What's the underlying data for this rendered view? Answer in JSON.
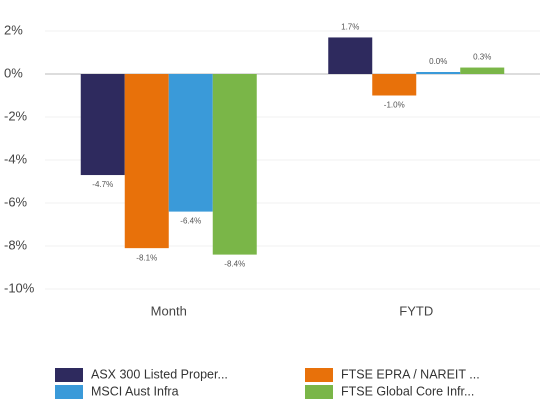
{
  "chart_data": {
    "type": "bar",
    "categories": [
      "Month",
      "FYTD"
    ],
    "series": [
      {
        "name": "ASX 300 Listed Proper...",
        "color": "#2e2a5e",
        "values": [
          -4.7,
          1.7
        ],
        "value_labels": [
          "-4.7%",
          "1.7%"
        ]
      },
      {
        "name": "FTSE EPRA / NAREIT ...",
        "color": "#e8710a",
        "values": [
          -8.1,
          -1.0
        ],
        "value_labels": [
          "-8.1%",
          "-1.0%"
        ]
      },
      {
        "name": "MSCI Aust Infra",
        "color": "#3a9ad9",
        "values": [
          -6.4,
          0.0
        ],
        "value_labels": [
          "-6.4%",
          "0.0%"
        ]
      },
      {
        "name": "FTSE Global Core Infr...",
        "color": "#7ab648",
        "values": [
          -8.4,
          0.3
        ],
        "value_labels": [
          "-8.4%",
          "0.3%"
        ]
      }
    ],
    "ylim": [
      -10,
      2.5
    ],
    "yticks": [
      {
        "value": 2,
        "label": "2%"
      },
      {
        "value": 0,
        "label": "0%"
      },
      {
        "value": -2,
        "label": "-2%"
      },
      {
        "value": -4,
        "label": "-4%"
      },
      {
        "value": -6,
        "label": "-6%"
      },
      {
        "value": -8,
        "label": "-8%"
      },
      {
        "value": -10,
        "label": "-10%"
      }
    ],
    "grid": true,
    "legend": "bottom"
  }
}
